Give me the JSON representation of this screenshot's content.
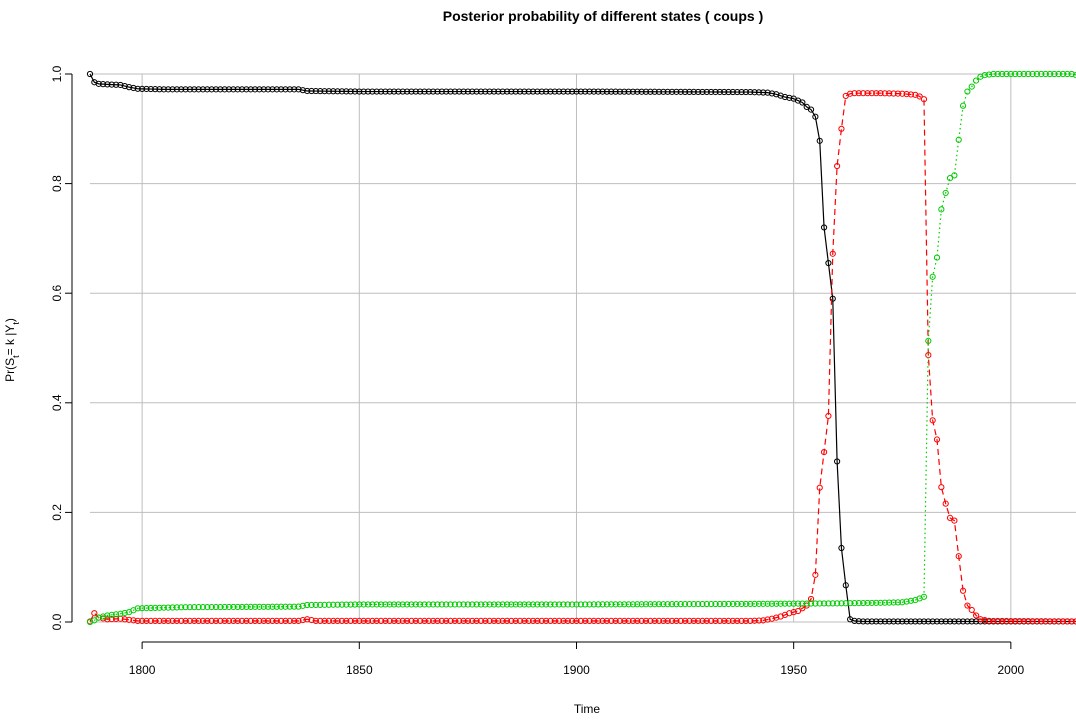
{
  "chart_data": {
    "type": "line",
    "title": "Posterior probability of different states ( coups )",
    "xlabel": "Time",
    "ylabel": "Pr(S_t = k | Y_t)",
    "xlim": [
      1788,
      2015
    ],
    "ylim": [
      0,
      1
    ],
    "x_ticks": [
      "1800",
      "1850",
      "1900",
      "1950",
      "2000"
    ],
    "y_ticks": [
      "0.0",
      "0.2",
      "0.4",
      "0.6",
      "0.8",
      "1.0"
    ],
    "grid": true,
    "series": [
      {
        "color": "#000000",
        "line_style": "solid",
        "x_start": 1788,
        "x_end": 2015,
        "points": [
          [
            1788,
            1.0
          ],
          [
            1789,
            0.985
          ],
          [
            1790,
            0.982
          ],
          [
            1792,
            0.981
          ],
          [
            1795,
            0.98
          ],
          [
            1797,
            0.976
          ],
          [
            1799,
            0.973
          ],
          [
            1805,
            0.972
          ],
          [
            1820,
            0.972
          ],
          [
            1836,
            0.972
          ],
          [
            1838,
            0.969
          ],
          [
            1850,
            0.968
          ],
          [
            1900,
            0.968
          ],
          [
            1940,
            0.967
          ],
          [
            1944,
            0.966
          ],
          [
            1946,
            0.963
          ],
          [
            1948,
            0.958
          ],
          [
            1950,
            0.955
          ],
          [
            1952,
            0.948
          ],
          [
            1953,
            0.94
          ],
          [
            1954,
            0.935
          ],
          [
            1955,
            0.922
          ],
          [
            1956,
            0.878
          ],
          [
            1957,
            0.72
          ],
          [
            1958,
            0.655
          ],
          [
            1959,
            0.59
          ],
          [
            1960,
            0.293
          ],
          [
            1961,
            0.135
          ],
          [
            1962,
            0.067
          ],
          [
            1963,
            0.005
          ],
          [
            1964,
            0.002
          ],
          [
            1966,
            0.001
          ],
          [
            2015,
            0.001
          ]
        ]
      },
      {
        "color": "#ff0000",
        "line_style": "dashed",
        "x_start": 1788,
        "x_end": 2015,
        "points": [
          [
            1788,
            0.001
          ],
          [
            1789,
            0.016
          ],
          [
            1790,
            0.008
          ],
          [
            1792,
            0.005
          ],
          [
            1795,
            0.006
          ],
          [
            1797,
            0.004
          ],
          [
            1799,
            0.002
          ],
          [
            1836,
            0.002
          ],
          [
            1838,
            0.005
          ],
          [
            1840,
            0.002
          ],
          [
            1940,
            0.002
          ],
          [
            1943,
            0.003
          ],
          [
            1945,
            0.006
          ],
          [
            1947,
            0.01
          ],
          [
            1949,
            0.016
          ],
          [
            1951,
            0.02
          ],
          [
            1952,
            0.025
          ],
          [
            1953,
            0.03
          ],
          [
            1954,
            0.042
          ],
          [
            1955,
            0.086
          ],
          [
            1956,
            0.245
          ],
          [
            1957,
            0.31
          ],
          [
            1958,
            0.376
          ],
          [
            1959,
            0.672
          ],
          [
            1960,
            0.832
          ],
          [
            1961,
            0.9
          ],
          [
            1962,
            0.96
          ],
          [
            1963,
            0.964
          ],
          [
            1964,
            0.965
          ],
          [
            1970,
            0.965
          ],
          [
            1975,
            0.964
          ],
          [
            1978,
            0.962
          ],
          [
            1979,
            0.959
          ],
          [
            1980,
            0.954
          ],
          [
            1981,
            0.487
          ],
          [
            1982,
            0.368
          ],
          [
            1983,
            0.333
          ],
          [
            1984,
            0.246
          ],
          [
            1985,
            0.216
          ],
          [
            1986,
            0.19
          ],
          [
            1987,
            0.185
          ],
          [
            1988,
            0.12
          ],
          [
            1989,
            0.057
          ],
          [
            1990,
            0.03
          ],
          [
            1991,
            0.022
          ],
          [
            1992,
            0.012
          ],
          [
            1993,
            0.005
          ],
          [
            1995,
            0.002
          ],
          [
            2015,
            0.001
          ]
        ]
      },
      {
        "color": "#00cc00",
        "line_style": "dotted",
        "x_start": 1788,
        "x_end": 2015,
        "points": [
          [
            1788,
            0.0
          ],
          [
            1789,
            0.003
          ],
          [
            1790,
            0.008
          ],
          [
            1792,
            0.012
          ],
          [
            1795,
            0.015
          ],
          [
            1797,
            0.018
          ],
          [
            1799,
            0.025
          ],
          [
            1810,
            0.027
          ],
          [
            1836,
            0.028
          ],
          [
            1838,
            0.031
          ],
          [
            1850,
            0.032
          ],
          [
            1900,
            0.032
          ],
          [
            1940,
            0.033
          ],
          [
            1960,
            0.034
          ],
          [
            1970,
            0.035
          ],
          [
            1975,
            0.036
          ],
          [
            1978,
            0.04
          ],
          [
            1979,
            0.043
          ],
          [
            1980,
            0.046
          ],
          [
            1981,
            0.513
          ],
          [
            1982,
            0.63
          ],
          [
            1983,
            0.665
          ],
          [
            1984,
            0.753
          ],
          [
            1985,
            0.783
          ],
          [
            1986,
            0.81
          ],
          [
            1987,
            0.815
          ],
          [
            1988,
            0.88
          ],
          [
            1989,
            0.942
          ],
          [
            1990,
            0.968
          ],
          [
            1991,
            0.977
          ],
          [
            1992,
            0.988
          ],
          [
            1993,
            0.995
          ],
          [
            1994,
            0.998
          ],
          [
            1996,
            1.0
          ],
          [
            2014,
            1.0
          ],
          [
            2015,
            0.998
          ]
        ]
      }
    ]
  }
}
